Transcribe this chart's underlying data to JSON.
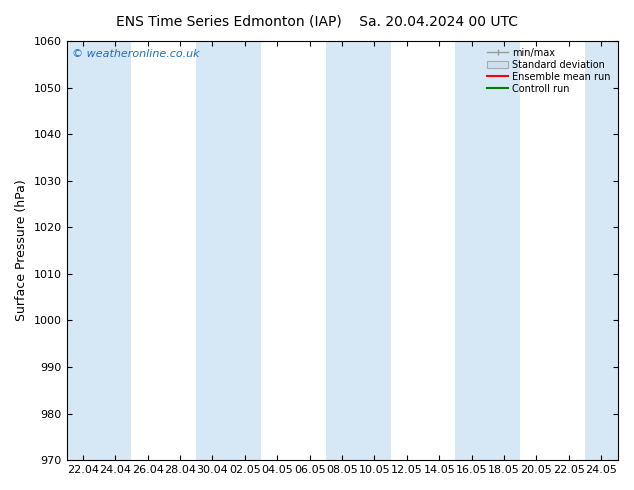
{
  "title_left": "ENS Time Series Edmonton (IAP)",
  "title_right": "Sa. 20.04.2024 00 UTC",
  "ylabel": "Surface Pressure (hPa)",
  "ylim": [
    970,
    1060
  ],
  "yticks": [
    970,
    980,
    990,
    1000,
    1010,
    1020,
    1030,
    1040,
    1050,
    1060
  ],
  "xtick_labels": [
    "22.04",
    "24.04",
    "26.04",
    "28.04",
    "30.04",
    "02.05",
    "04.05",
    "06.05",
    "08.05",
    "10.05",
    "12.05",
    "14.05",
    "16.05",
    "18.05",
    "20.05",
    "22.05",
    "24.05"
  ],
  "watermark": "© weatheronline.co.uk",
  "watermark_color": "#1a6fc4",
  "bg_color": "#ffffff",
  "plot_bg_color": "#ffffff",
  "stripe_color": "#d6e8f5",
  "legend_items": [
    "min/max",
    "Standard deviation",
    "Ensemble mean run",
    "Controll run"
  ],
  "legend_colors": [
    "#aaaaaa",
    "#cce0f0",
    "#ff0000",
    "#008000"
  ],
  "title_fontsize": 10,
  "label_fontsize": 9,
  "tick_fontsize": 8,
  "watermark_fontsize": 8
}
